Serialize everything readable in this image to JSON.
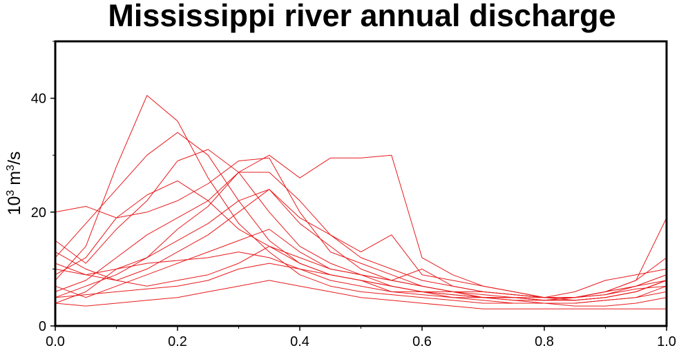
{
  "chart_data": {
    "type": "line",
    "title": "Mississippi river annual discharge",
    "xlabel": "",
    "ylabel": "10",
    "ylabel_superscript_base": "3",
    "ylabel_unit": " m",
    "ylabel_unit_superscript": "3",
    "ylabel_suffix": "/s",
    "xlim": [
      0,
      1
    ],
    "ylim": [
      0,
      50
    ],
    "xticks": [
      0.0,
      0.2,
      0.4,
      0.6,
      0.8,
      1.0
    ],
    "xtick_labels": [
      "0.0",
      "0.2",
      "0.4",
      "0.6",
      "0.8",
      "1.0"
    ],
    "yticks": [
      0,
      20,
      40
    ],
    "ytick_labels": [
      "0",
      "20",
      "40"
    ],
    "grid": false,
    "legend": false,
    "line_color": "#e8191b",
    "x": [
      0.0,
      0.05,
      0.1,
      0.15,
      0.2,
      0.25,
      0.3,
      0.35,
      0.4,
      0.45,
      0.5,
      0.55,
      0.6,
      0.65,
      0.7,
      0.75,
      0.8,
      0.85,
      0.9,
      0.95,
      1.0
    ],
    "series": [
      {
        "values": [
          8,
          14,
          28,
          40.5,
          36,
          26,
          18,
          13,
          9,
          7,
          6,
          5.5,
          5,
          4.5,
          4,
          4,
          4,
          3.5,
          3.5,
          4,
          5
        ]
      },
      {
        "values": [
          12,
          18,
          24,
          30,
          34,
          30,
          22,
          15,
          11,
          9,
          8,
          7,
          6,
          5,
          5,
          4.5,
          4,
          4,
          4.5,
          5,
          7
        ]
      },
      {
        "values": [
          15,
          11,
          17,
          22,
          29,
          31,
          27,
          20,
          14,
          11,
          9,
          7,
          6,
          6,
          5,
          5,
          4.5,
          4.5,
          5,
          6,
          8
        ]
      },
      {
        "values": [
          20,
          21,
          19,
          23,
          25.5,
          22,
          17,
          14,
          11,
          9,
          8,
          7,
          6,
          5.5,
          5,
          5,
          4.5,
          4.5,
          5,
          6,
          8
        ]
      },
      {
        "values": [
          6,
          8,
          12,
          16,
          19,
          22,
          27,
          30,
          26,
          29.5,
          29.5,
          30,
          12,
          9,
          7,
          6,
          5,
          5,
          6,
          8,
          12
        ]
      },
      {
        "values": [
          9,
          12,
          19,
          20,
          22,
          25,
          29,
          29.5,
          20,
          13,
          11,
          9,
          7,
          6,
          5.5,
          5,
          5,
          6,
          8,
          9,
          10
        ]
      },
      {
        "values": [
          5,
          7,
          9,
          12,
          17,
          21,
          27,
          27,
          22,
          16,
          12,
          10,
          8,
          7,
          6,
          5.5,
          5,
          5,
          6,
          7,
          9
        ]
      },
      {
        "values": [
          11,
          9,
          8,
          10,
          13,
          16,
          20,
          24,
          19,
          16,
          13,
          16,
          9,
          8,
          7,
          6,
          5,
          4.5,
          5,
          6,
          8
        ]
      },
      {
        "values": [
          4,
          6,
          10,
          12,
          15,
          18,
          22,
          24,
          18,
          14,
          10,
          8,
          7,
          6,
          6,
          5.5,
          5,
          5,
          5.5,
          6.5,
          7
        ]
      },
      {
        "values": [
          7,
          5,
          7,
          9,
          11,
          13,
          15,
          17,
          13,
          10,
          9,
          8,
          10,
          7,
          6,
          5.5,
          5,
          5,
          5.5,
          7,
          9
        ]
      },
      {
        "values": [
          10,
          9,
          10,
          11,
          11.5,
          12,
          13,
          12,
          10,
          8,
          7,
          6,
          5.5,
          5,
          4.5,
          4,
          4,
          4,
          4.5,
          5,
          6
        ]
      },
      {
        "values": [
          5,
          5.5,
          6,
          6.5,
          7,
          8,
          10,
          11,
          10,
          9,
          8,
          6,
          6,
          5.5,
          5,
          4.5,
          4.5,
          5,
          6,
          7,
          8
        ]
      },
      {
        "values": [
          4,
          3.5,
          4,
          4.5,
          5,
          6,
          7,
          8,
          7,
          6,
          5,
          4.5,
          4,
          3.5,
          3,
          3,
          3,
          3,
          3,
          3,
          3
        ]
      },
      {
        "values": [
          13,
          10,
          8,
          7,
          8,
          9,
          11,
          14,
          12,
          10,
          9,
          8,
          7,
          6,
          5,
          5,
          4.5,
          5,
          6,
          8,
          19
        ]
      }
    ]
  }
}
